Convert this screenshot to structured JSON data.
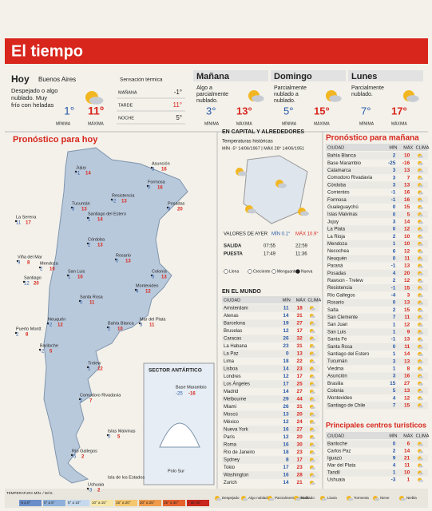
{
  "header": {
    "title": "El tiempo"
  },
  "today": {
    "label": "Hoy",
    "city": "Buenos Aires",
    "text": [
      "Despejado o algo",
      "nublado. Muy",
      "frío con heladas"
    ],
    "min": "1°",
    "max": "11°",
    "min_label": "MÍNIMA",
    "max_label": "MÁXIMA"
  },
  "feels_like": {
    "title": "Sensación térmica",
    "rows": [
      [
        "MAÑANA",
        "-1°"
      ],
      [
        "TARDE",
        "11°"
      ],
      [
        "NOCHE",
        "5°"
      ]
    ]
  },
  "days": [
    {
      "label": "Mañana",
      "text": [
        "Algo a",
        "parcialmente",
        "nublado."
      ],
      "min": "3°",
      "max": "13°"
    },
    {
      "label": "Domingo",
      "text": [
        "Parcialmente",
        "nublado a",
        "nublado."
      ],
      "min": "5°",
      "max": "15°"
    },
    {
      "label": "Lunes",
      "text": [
        "Parcialmente",
        "nublado."
      ],
      "min": "7°",
      "max": "17°"
    }
  ],
  "map": {
    "title": "Pronóstico para hoy",
    "cities": [
      [
        "La Serena",
        11,
        17
      ],
      [
        "Asunción",
        3,
        16
      ],
      [
        "Jujuy",
        -1,
        14
      ],
      [
        "Tucumán",
        3,
        13
      ],
      [
        "Formosa",
        0,
        16
      ],
      [
        "Resistencia",
        -2,
        13
      ],
      [
        "Posadas",
        3,
        20
      ],
      [
        "Santiago del Estero",
        1,
        14
      ],
      [
        "Córdoba",
        2,
        13
      ],
      [
        "Mendoza",
        2,
        10
      ],
      [
        "San Luis",
        1,
        10
      ],
      [
        "Rosario",
        0,
        13
      ],
      [
        "Viña del Mar",
        9,
        8
      ],
      [
        "Santiago",
        12,
        20
      ],
      [
        "Colonia",
        5,
        13
      ],
      [
        "Montevideo",
        4,
        12
      ],
      [
        "Santa Rosa",
        0,
        11
      ],
      [
        "Bahía Blanca",
        2,
        10
      ],
      [
        "Mar del Plata",
        3,
        11
      ],
      [
        "Neuquén",
        -2,
        12
      ],
      [
        "Puerto Montt",
        2,
        8
      ],
      [
        "Bariloche",
        -2,
        5
      ],
      [
        "Trelew",
        1,
        12
      ],
      [
        "Comodoro Rivadavia",
        2,
        7
      ],
      [
        "Río Gallegos",
        -5,
        2
      ],
      [
        "Islas Malvinas",
        0,
        5
      ],
      [
        "Ushuaia",
        -3,
        2
      ]
    ],
    "extra": [
      "Isla de los Estados"
    ],
    "antarctic": {
      "title": "SECTOR ANTÁRTICO",
      "base": "Base Marambio",
      "min": -25,
      "max": -16,
      "pole": "Polo Sur"
    }
  },
  "capital": {
    "title": "EN CAPITAL Y ALREDEDORES",
    "hist_title": "Temperaturas históricas",
    "hist": "MÍN -5° 14/06/1967 | MÁX 28° 14/06/1951",
    "yesterday": "VALORES DE AYER",
    "y_min": "MÍN 0.1°",
    "y_max": "MÁX 10.9°",
    "rise": [
      "SALIDA",
      "07:55",
      "22:59"
    ],
    "set": [
      "PUESTA",
      "17:49",
      "11:36"
    ],
    "moons": [
      "Llena",
      "Creciente",
      "Menguante",
      "Nueva"
    ]
  },
  "world": {
    "title": "EN EL MUNDO",
    "columns": [
      "CIUDAD",
      "MÍN",
      "MÁX",
      "CLIMA"
    ],
    "rows": [
      [
        "Amsterdam",
        11,
        18
      ],
      [
        "Atenas",
        14,
        31
      ],
      [
        "Barcelona",
        19,
        27
      ],
      [
        "Bruselas",
        12,
        17
      ],
      [
        "Caracas",
        26,
        32
      ],
      [
        "La Habana",
        23,
        31
      ],
      [
        "La Paz",
        0,
        13
      ],
      [
        "Lima",
        18,
        22
      ],
      [
        "Lisboa",
        14,
        23
      ],
      [
        "Londres",
        12,
        17
      ],
      [
        "Los Ángeles",
        17,
        25
      ],
      [
        "Madrid",
        14,
        27
      ],
      [
        "Melbourne",
        29,
        44
      ],
      [
        "Miami",
        26,
        31
      ],
      [
        "Moscú",
        13,
        20
      ],
      [
        "México",
        12,
        24
      ],
      [
        "Nueva York",
        16,
        27
      ],
      [
        "París",
        12,
        20
      ],
      [
        "Roma",
        16,
        30
      ],
      [
        "Río de Janeiro",
        18,
        23
      ],
      [
        "Sydney",
        8,
        17
      ],
      [
        "Tokio",
        17,
        23
      ],
      [
        "Washington",
        16,
        28
      ],
      [
        "Zurich",
        14,
        21
      ]
    ]
  },
  "tomorrow": {
    "title": "Pronóstico para mañana",
    "columns": [
      "CIUDAD",
      "MÍN",
      "MÁX",
      "CLIMA"
    ],
    "rows": [
      [
        "Bahía Blanca",
        2,
        10
      ],
      [
        "Base Marambio",
        -25,
        -16
      ],
      [
        "Catamarca",
        3,
        13
      ],
      [
        "Comodoro Rivadavia",
        3,
        7
      ],
      [
        "Córdoba",
        3,
        13
      ],
      [
        "Corrientes",
        -1,
        16
      ],
      [
        "Formosa",
        -1,
        16
      ],
      [
        "Gualeguaychú",
        0,
        15
      ],
      [
        "Islas Malvinas",
        0,
        5
      ],
      [
        "Jujuy",
        3,
        14
      ],
      [
        "La Plata",
        0,
        12
      ],
      [
        "La Rioja",
        2,
        10
      ],
      [
        "Mendoza",
        1,
        10
      ],
      [
        "Necochea",
        6,
        12
      ],
      [
        "Neuquén",
        0,
        11
      ],
      [
        "Paraná",
        -1,
        13
      ],
      [
        "Posadas",
        4,
        20
      ],
      [
        "Rawson - Trelew",
        2,
        12
      ],
      [
        "Resistencia",
        -1,
        15
      ],
      [
        "Río Gallegos",
        -4,
        3
      ],
      [
        "Rosario",
        0,
        13
      ],
      [
        "Salta",
        2,
        15
      ],
      [
        "San Clemente",
        7,
        11
      ],
      [
        "San Juan",
        1,
        12
      ],
      [
        "San Luis",
        1,
        9
      ],
      [
        "Santa Fe",
        -1,
        13
      ],
      [
        "Santa Rosa",
        0,
        11
      ],
      [
        "Santiago del Estero",
        1,
        14
      ],
      [
        "Tucumán",
        3,
        13
      ],
      [
        "Viedma",
        1,
        8
      ],
      [
        "Asunción",
        3,
        16
      ],
      [
        "Brasilia",
        15,
        27
      ],
      [
        "Colonia",
        5,
        13
      ],
      [
        "Montevideo",
        4,
        12
      ],
      [
        "Santiago de Chile",
        7,
        15
      ]
    ]
  },
  "tourism": {
    "title": "Principales centros turísticos",
    "columns": [
      "CIUDAD",
      "MÍN",
      "MÁX",
      "CLIMA"
    ],
    "rows": [
      [
        "Bariloche",
        0,
        6
      ],
      [
        "Carlos Paz",
        2,
        14
      ],
      [
        "Iguazú",
        9,
        21
      ],
      [
        "Mar del Plata",
        4,
        11
      ],
      [
        "Tandil",
        1,
        10
      ],
      [
        "Ushuaia",
        -3,
        1
      ]
    ]
  },
  "legend": {
    "title": "TEMPERATURA MÍN. / MÁX.",
    "ranges": [
      "-5 a 0°",
      "0° a 5°",
      "5° a 10°",
      "10° a 15°",
      "15° a 20°",
      "20° a 25°",
      "25° a 30°",
      "+ de 30°"
    ],
    "states": [
      "Despejado",
      "Algo nublado",
      "Parcialmente nublado",
      "Nublado",
      "Lluvia",
      "Tormenta",
      "Nieve",
      "Niebla"
    ]
  }
}
